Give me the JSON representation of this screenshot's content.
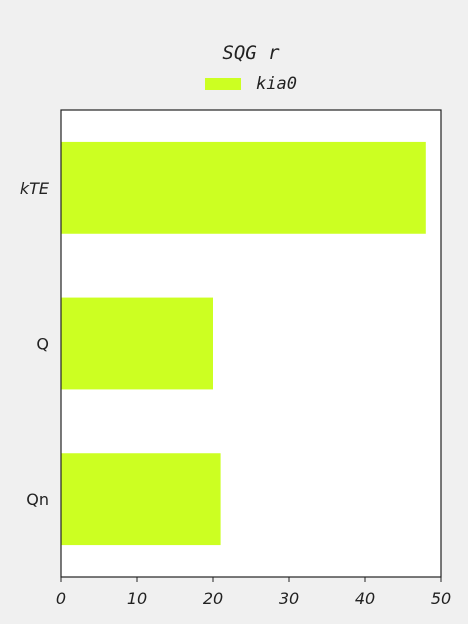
{
  "chart_data": {
    "type": "bar",
    "orientation": "horizontal",
    "title": "SQG  r",
    "xlabel": "",
    "ylabel": "",
    "categories": [
      "kTE",
      "Q",
      "Qn"
    ],
    "series": [
      {
        "name": "kia0",
        "values": [
          48,
          20,
          21
        ]
      }
    ],
    "xlim": [
      0,
      50
    ],
    "xticks": [
      "0",
      "10",
      "20",
      "30",
      "40",
      "50"
    ],
    "grid": false,
    "legend_position": "top-center",
    "colors": {
      "bar": "#ccff22",
      "plot_bg": "#ffffff",
      "page_bg": "#f0f0f0",
      "axis": "#222222"
    }
  }
}
